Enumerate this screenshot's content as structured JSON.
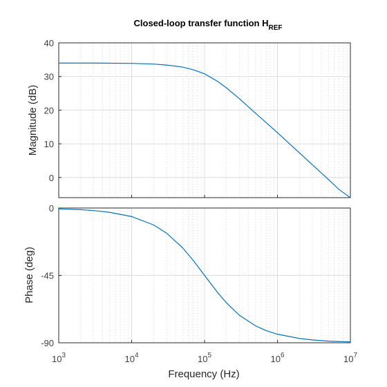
{
  "chart_data": {
    "type": "line",
    "title": "Closed-loop transfer function H",
    "title_subscript": "REF",
    "xlabel": "Frequency  (Hz)",
    "xscale": "log",
    "xlim": [
      1000,
      10000000
    ],
    "xticks": [
      1000,
      10000,
      100000,
      1000000,
      10000000
    ],
    "xtick_labels": [
      {
        "base": "10",
        "exp": "3"
      },
      {
        "base": "10",
        "exp": "4"
      },
      {
        "base": "10",
        "exp": "5"
      },
      {
        "base": "10",
        "exp": "6"
      },
      {
        "base": "10",
        "exp": "7"
      }
    ],
    "grid": true,
    "minor_grid": true,
    "colors": {
      "trace": "#0072BD"
    },
    "subplots": [
      {
        "name": "magnitude",
        "ylabel": "Magnitude (dB)",
        "ylim": [
          -6,
          40
        ],
        "yticks": [
          0,
          10,
          20,
          30,
          40
        ],
        "ytick_labels": [
          "0",
          "10",
          "20",
          "30",
          "40"
        ],
        "series": [
          {
            "x": [
              1000,
              3000,
              10000,
              20000,
              30000,
              50000,
              70000,
              100000,
              150000,
              200000,
              300000,
              500000,
              700000,
              1000000,
              2000000,
              3000000,
              5000000,
              7000000,
              10000000
            ],
            "y": [
              34.0,
              34.0,
              33.9,
              33.7,
              33.4,
              32.8,
              32.0,
              30.8,
              28.6,
              26.6,
              23.4,
              19.1,
              16.3,
              13.3,
              7.3,
              3.8,
              -0.6,
              -3.6,
              -6.0
            ]
          }
        ]
      },
      {
        "name": "phase",
        "ylabel": "Phase (deg)",
        "ylim": [
          -90,
          0
        ],
        "yticks": [
          -90,
          -45,
          0
        ],
        "ytick_labels": [
          "-90",
          "-45",
          "0"
        ],
        "series": [
          {
            "x": [
              1000,
              2000,
              3000,
              5000,
              10000,
              20000,
              30000,
              50000,
              70000,
              100000,
              150000,
              200000,
              300000,
              500000,
              700000,
              1000000,
              2000000,
              3000000,
              5000000,
              10000000
            ],
            "y": [
              -0.6,
              -1.1,
              -1.7,
              -2.9,
              -5.7,
              -11.3,
              -16.7,
              -26.6,
              -35.0,
              -45.0,
              -56.3,
              -63.4,
              -71.6,
              -78.7,
              -81.9,
              -84.3,
              -87.1,
              -88.1,
              -88.9,
              -89.4
            ]
          }
        ]
      }
    ]
  }
}
